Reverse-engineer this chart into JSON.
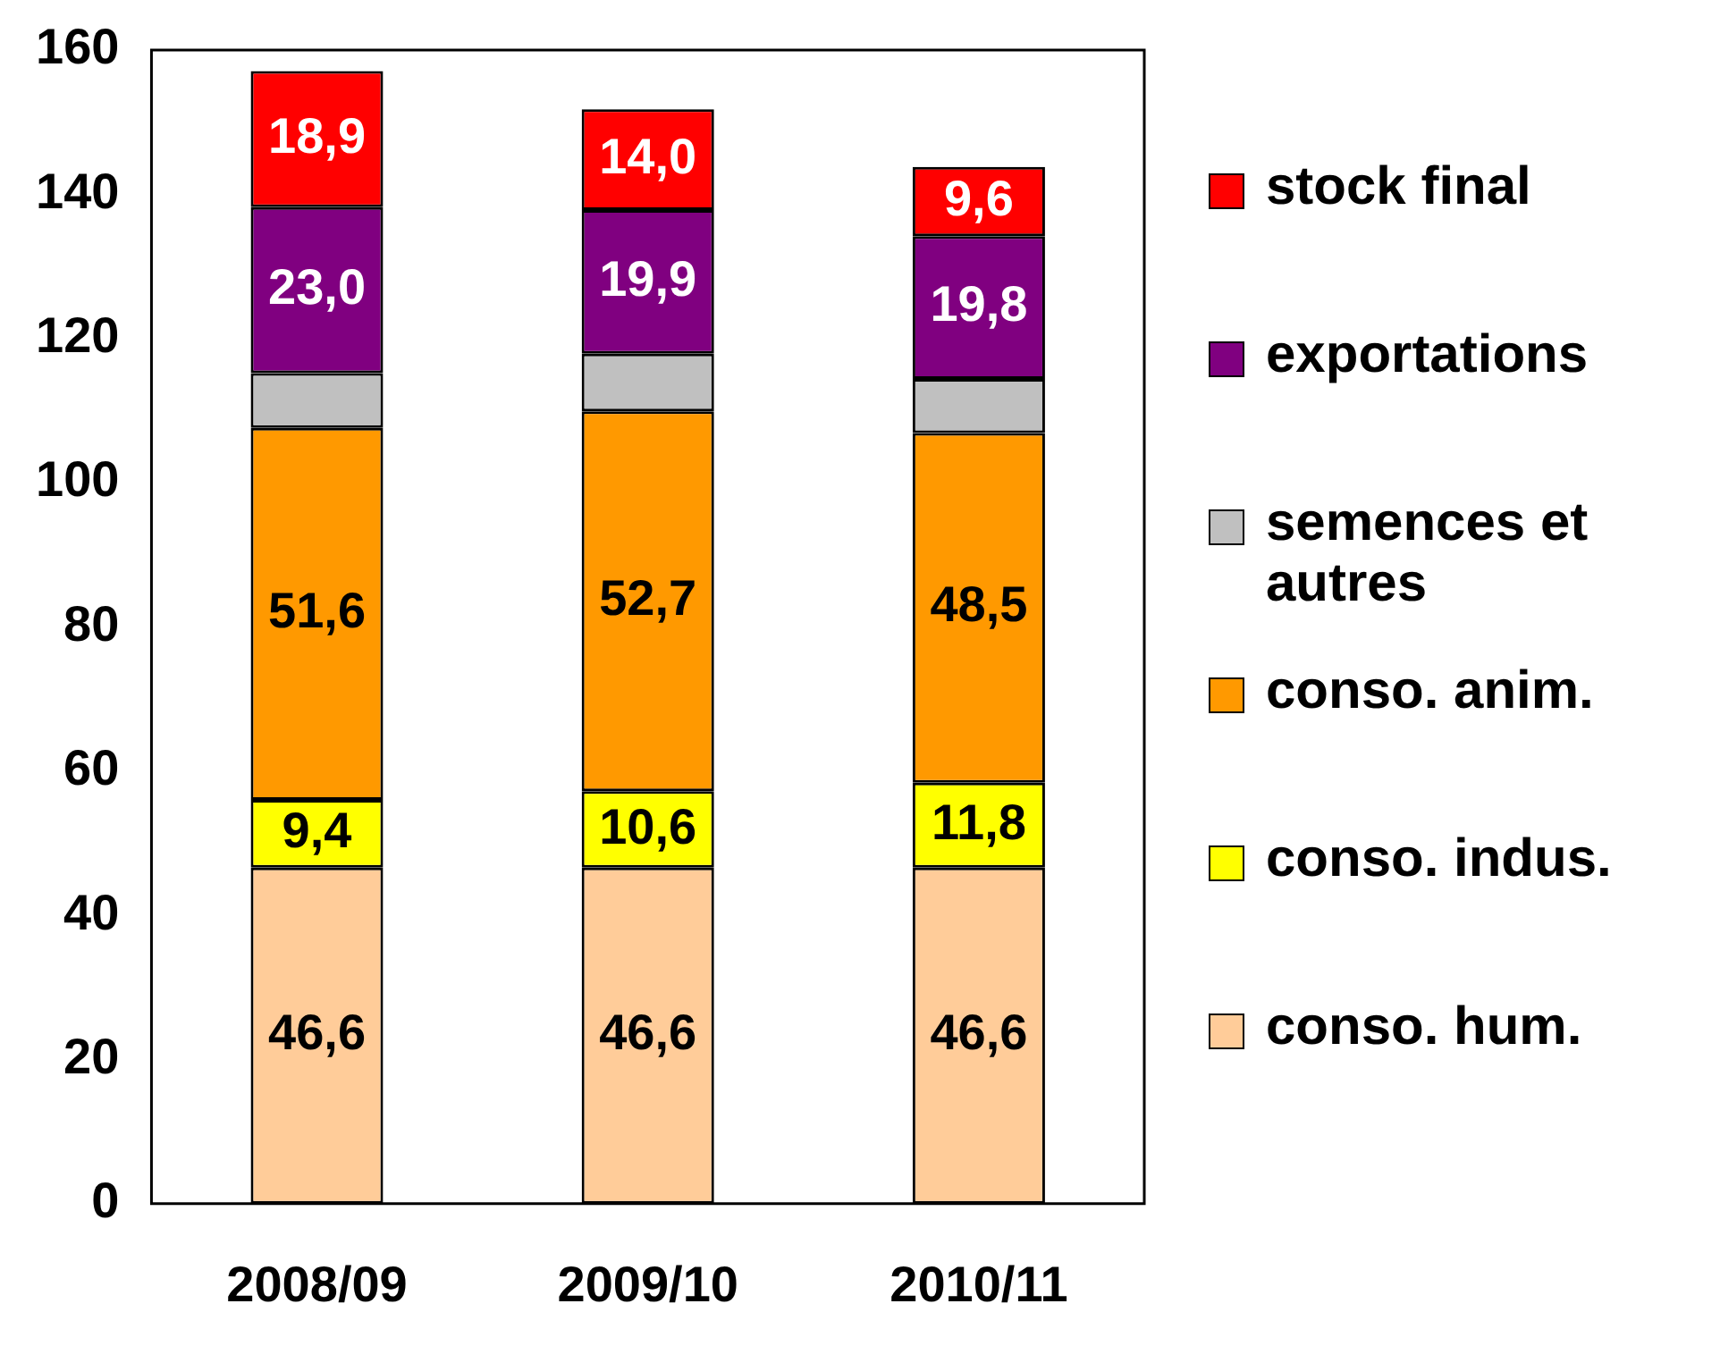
{
  "chart_data": {
    "type": "bar",
    "stacked": true,
    "categories": [
      "2008/09",
      "2009/10",
      "2010/11"
    ],
    "series": [
      {
        "name": "conso. hum.",
        "color": "#ffcc99",
        "values": [
          46.6,
          46.6,
          46.6
        ],
        "value_labels": [
          "46,6",
          "46,6",
          "46,6"
        ]
      },
      {
        "name": "conso. indus.",
        "color": "#ffff00",
        "values": [
          9.4,
          10.6,
          11.8
        ],
        "value_labels": [
          "9,4",
          "10,6",
          "11,8"
        ]
      },
      {
        "name": "conso. anim.",
        "color": "#ff9900",
        "values": [
          51.6,
          52.7,
          48.5
        ],
        "value_labels": [
          "51,6",
          "52,7",
          "48,5"
        ]
      },
      {
        "name": "semences et autres",
        "color": "#c0c0c0",
        "values": [
          7.6,
          8.0,
          7.5
        ],
        "value_labels": [
          null,
          null,
          null
        ]
      },
      {
        "name": "exportations",
        "color": "#800080",
        "values": [
          23.0,
          19.9,
          19.8
        ],
        "value_labels": [
          "23,0",
          "19,9",
          "19,8"
        ]
      },
      {
        "name": "stock final",
        "color": "#ff0000",
        "values": [
          18.9,
          14.0,
          9.6
        ],
        "value_labels": [
          "18,9",
          "14,0",
          "9,6"
        ]
      }
    ],
    "ylim": [
      0,
      160
    ],
    "yticks": [
      0,
      20,
      40,
      60,
      80,
      100,
      120,
      140,
      160
    ],
    "grid": false,
    "legend": "right"
  }
}
